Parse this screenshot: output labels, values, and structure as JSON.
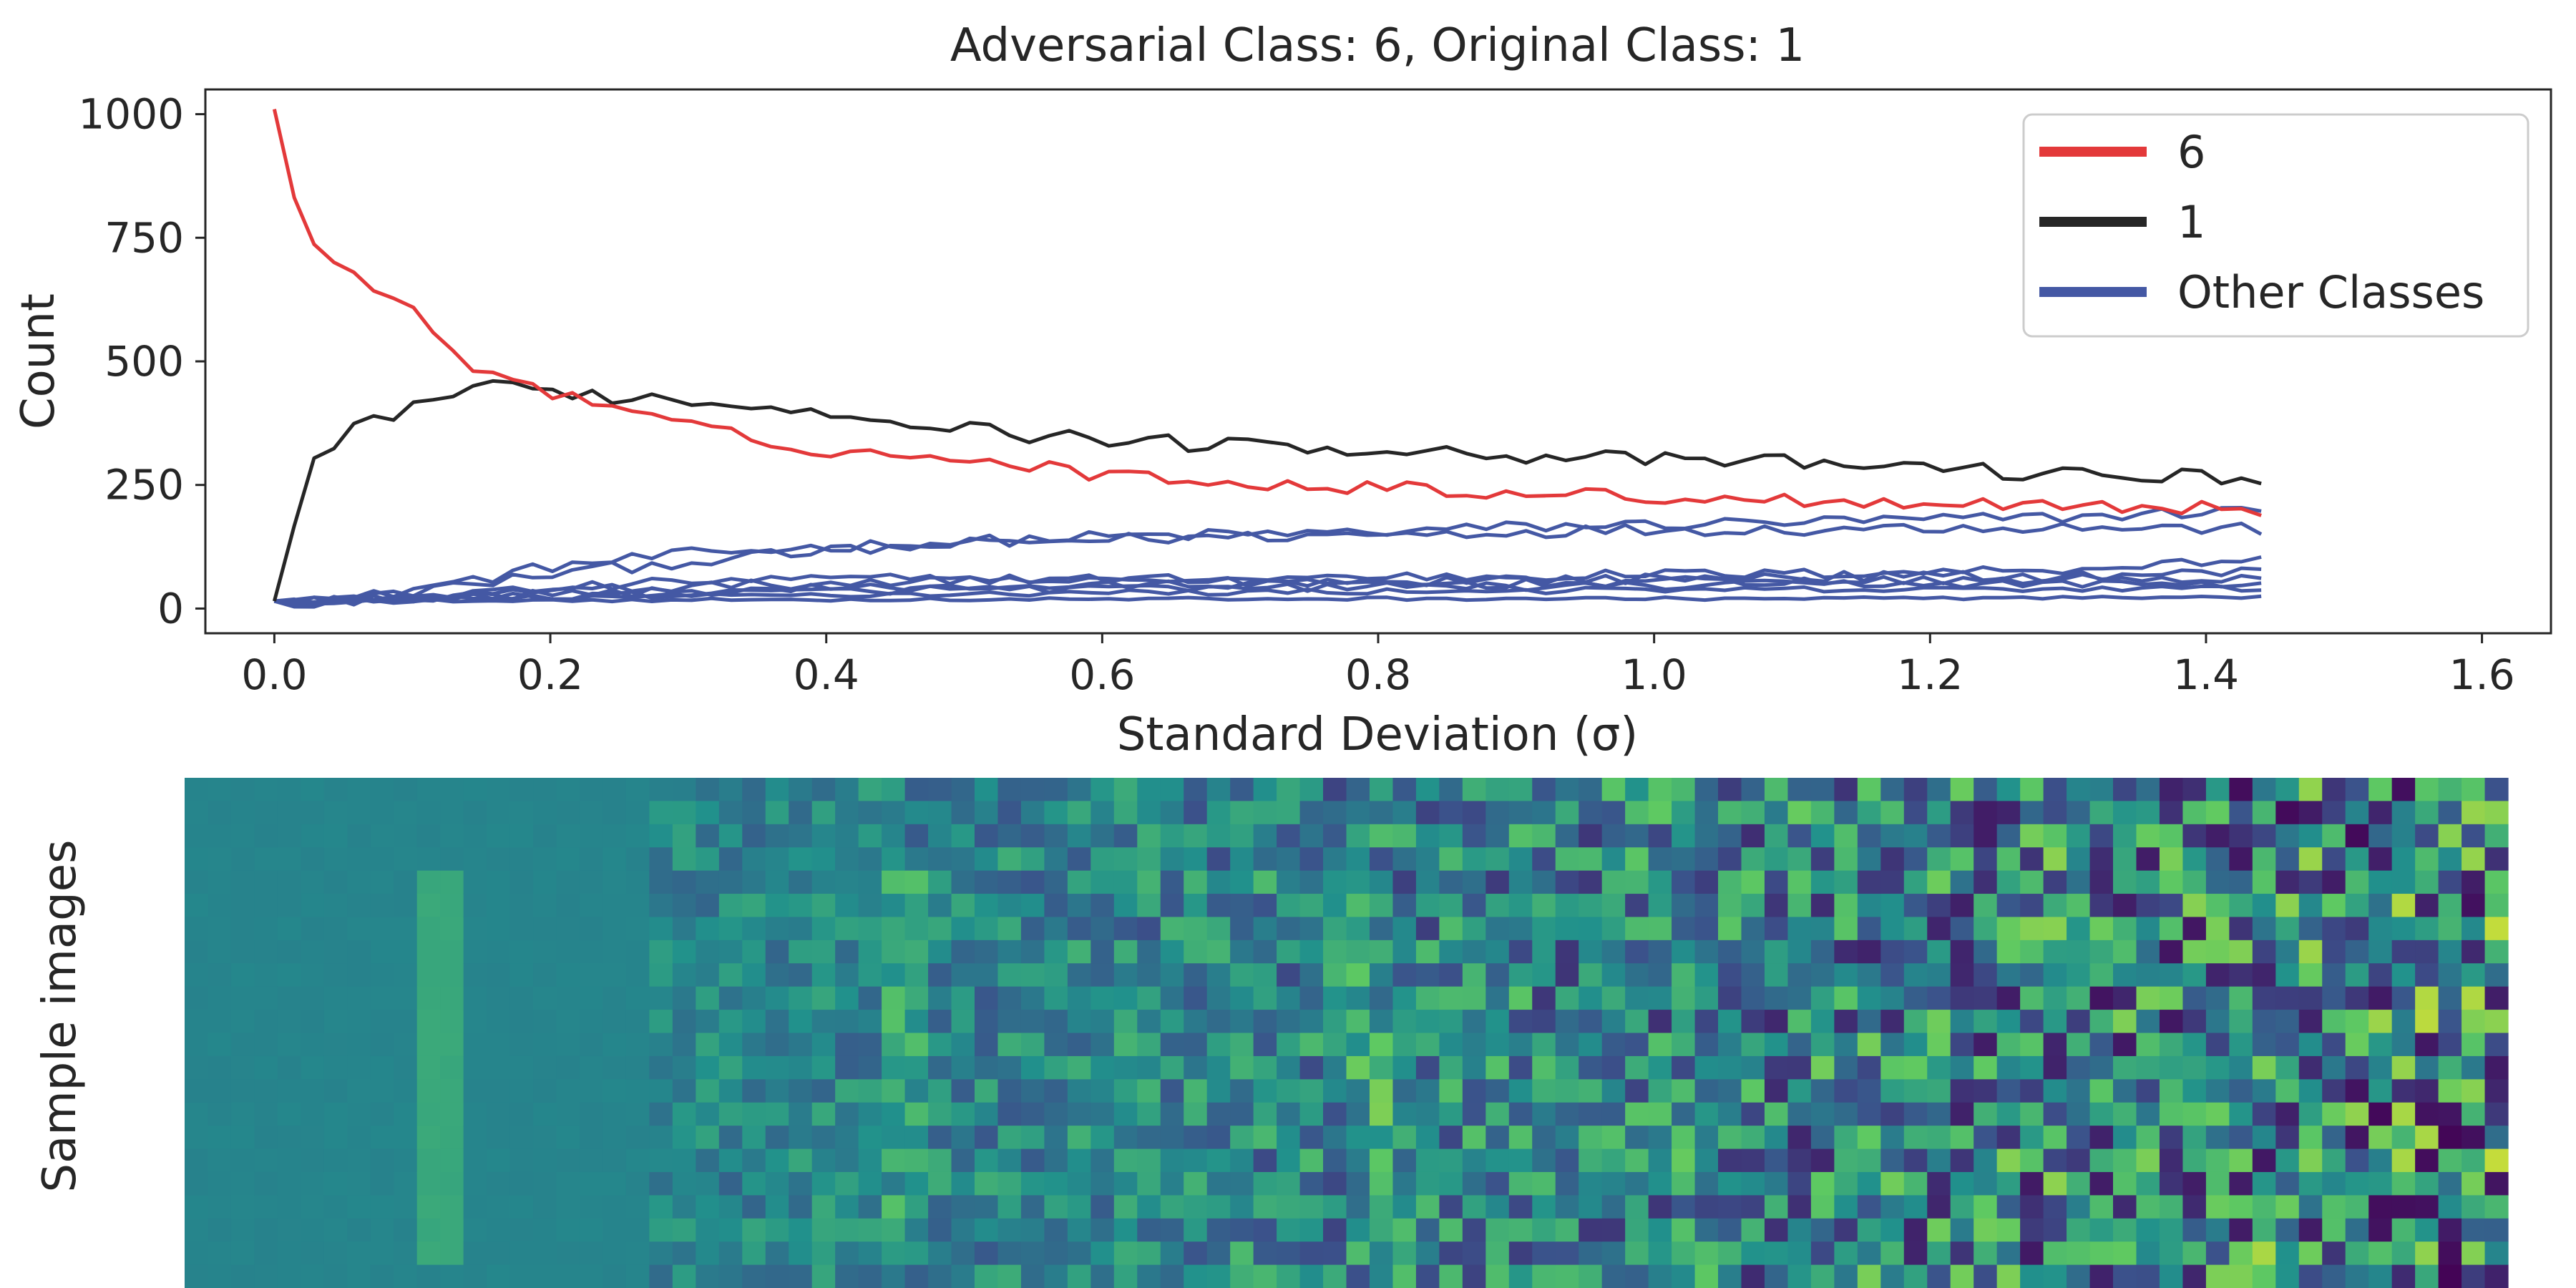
{
  "chart_data": [
    {
      "type": "line",
      "title": "Adversarial Class: 6, Original Class: 1",
      "xlabel": "Standard Deviation (σ)",
      "ylabel": "Count",
      "xlim": [
        -0.05,
        1.65
      ],
      "ylim": [
        -50,
        1050
      ],
      "xticks": [
        0.0,
        0.2,
        0.4,
        0.6,
        0.8,
        1.0,
        1.2,
        1.4,
        1.6
      ],
      "xtick_labels": [
        "0.0",
        "0.2",
        "0.4",
        "0.6",
        "0.8",
        "1.0",
        "1.2",
        "1.4",
        "1.6"
      ],
      "yticks": [
        0,
        250,
        500,
        750,
        1000
      ],
      "ytick_labels": [
        "0",
        "250",
        "500",
        "750",
        "1000"
      ],
      "grid": false,
      "legend_position": "top-right",
      "legend": [
        {
          "label": "6",
          "color": "#e3393a"
        },
        {
          "label": "1",
          "color": "#262626"
        },
        {
          "label": "Other Classes",
          "color": "#4458a4"
        }
      ],
      "x_range": [
        0.0,
        1.44
      ],
      "num_points": 101,
      "series": [
        {
          "name": "6",
          "color": "#e3393a",
          "anchors": [
            [
              0.0,
              1010
            ],
            [
              0.01,
              860
            ],
            [
              0.03,
              730
            ],
            [
              0.05,
              690
            ],
            [
              0.07,
              650
            ],
            [
              0.1,
              600
            ],
            [
              0.12,
              550
            ],
            [
              0.14,
              490
            ],
            [
              0.16,
              480
            ],
            [
              0.18,
              460
            ],
            [
              0.2,
              440
            ],
            [
              0.22,
              420
            ],
            [
              0.25,
              400
            ],
            [
              0.28,
              380
            ],
            [
              0.3,
              370
            ],
            [
              0.35,
              340
            ],
            [
              0.4,
              320
            ],
            [
              0.45,
              310
            ],
            [
              0.5,
              300
            ],
            [
              0.55,
              290
            ],
            [
              0.6,
              270
            ],
            [
              0.65,
              265
            ],
            [
              0.7,
              255
            ],
            [
              0.75,
              250
            ],
            [
              0.8,
              245
            ],
            [
              0.85,
              240
            ],
            [
              0.9,
              235
            ],
            [
              0.95,
              230
            ],
            [
              1.0,
              225
            ],
            [
              1.1,
              220
            ],
            [
              1.2,
              215
            ],
            [
              1.3,
              210
            ],
            [
              1.44,
              200
            ]
          ],
          "noise": 14
        },
        {
          "name": "1",
          "color": "#262626",
          "anchors": [
            [
              0.0,
              15
            ],
            [
              0.03,
              300
            ],
            [
              0.06,
              370
            ],
            [
              0.1,
              410
            ],
            [
              0.14,
              445
            ],
            [
              0.17,
              445
            ],
            [
              0.2,
              440
            ],
            [
              0.25,
              430
            ],
            [
              0.3,
              420
            ],
            [
              0.35,
              410
            ],
            [
              0.4,
              400
            ],
            [
              0.45,
              385
            ],
            [
              0.5,
              365
            ],
            [
              0.55,
              350
            ],
            [
              0.6,
              345
            ],
            [
              0.65,
              335
            ],
            [
              0.7,
              330
            ],
            [
              0.8,
              325
            ],
            [
              0.9,
              310
            ],
            [
              1.0,
              300
            ],
            [
              1.1,
              295
            ],
            [
              1.2,
              285
            ],
            [
              1.3,
              270
            ],
            [
              1.44,
              265
            ]
          ],
          "noise": 16
        },
        {
          "name": "Other Classes",
          "color": "#4458a4",
          "anchors": [
            [
              0.0,
              15
            ],
            [
              0.05,
              15
            ],
            [
              0.1,
              40
            ],
            [
              0.15,
              60
            ],
            [
              0.2,
              85
            ],
            [
              0.3,
              110
            ],
            [
              0.4,
              125
            ],
            [
              0.5,
              135
            ],
            [
              0.6,
              145
            ],
            [
              0.7,
              150
            ],
            [
              0.8,
              155
            ],
            [
              0.9,
              165
            ],
            [
              1.0,
              170
            ],
            [
              1.1,
              175
            ],
            [
              1.2,
              180
            ],
            [
              1.3,
              185
            ],
            [
              1.44,
              200
            ]
          ],
          "noise": 12
        },
        {
          "name": "Other Classes",
          "color": "#4458a4",
          "anchors": [
            [
              0.0,
              15
            ],
            [
              0.05,
              15
            ],
            [
              0.1,
              35
            ],
            [
              0.15,
              50
            ],
            [
              0.2,
              70
            ],
            [
              0.3,
              95
            ],
            [
              0.4,
              115
            ],
            [
              0.5,
              130
            ],
            [
              0.6,
              140
            ],
            [
              0.7,
              145
            ],
            [
              0.8,
              150
            ],
            [
              0.9,
              155
            ],
            [
              1.0,
              160
            ],
            [
              1.1,
              160
            ],
            [
              1.2,
              165
            ],
            [
              1.3,
              165
            ],
            [
              1.44,
              160
            ]
          ],
          "noise": 12
        },
        {
          "name": "Other Classes",
          "color": "#4458a4",
          "anchors": [
            [
              0.0,
              15
            ],
            [
              0.05,
              15
            ],
            [
              0.1,
              25
            ],
            [
              0.2,
              40
            ],
            [
              0.3,
              55
            ],
            [
              0.4,
              60
            ],
            [
              0.5,
              60
            ],
            [
              0.6,
              60
            ],
            [
              0.7,
              60
            ],
            [
              0.8,
              65
            ],
            [
              0.9,
              65
            ],
            [
              1.0,
              70
            ],
            [
              1.1,
              70
            ],
            [
              1.2,
              75
            ],
            [
              1.3,
              80
            ],
            [
              1.44,
              100
            ]
          ],
          "noise": 10
        },
        {
          "name": "Other Classes",
          "color": "#4458a4",
          "anchors": [
            [
              0.0,
              15
            ],
            [
              0.05,
              15
            ],
            [
              0.1,
              25
            ],
            [
              0.2,
              35
            ],
            [
              0.3,
              45
            ],
            [
              0.4,
              50
            ],
            [
              0.5,
              55
            ],
            [
              0.6,
              55
            ],
            [
              0.7,
              55
            ],
            [
              0.8,
              55
            ],
            [
              0.9,
              60
            ],
            [
              1.0,
              60
            ],
            [
              1.1,
              65
            ],
            [
              1.2,
              65
            ],
            [
              1.3,
              65
            ],
            [
              1.44,
              75
            ]
          ],
          "noise": 10
        },
        {
          "name": "Other Classes",
          "color": "#4458a4",
          "anchors": [
            [
              0.0,
              15
            ],
            [
              0.05,
              15
            ],
            [
              0.1,
              20
            ],
            [
              0.2,
              30
            ],
            [
              0.3,
              35
            ],
            [
              0.4,
              40
            ],
            [
              0.5,
              45
            ],
            [
              0.6,
              45
            ],
            [
              0.7,
              50
            ],
            [
              0.8,
              50
            ],
            [
              0.9,
              50
            ],
            [
              1.0,
              55
            ],
            [
              1.1,
              55
            ],
            [
              1.2,
              55
            ],
            [
              1.3,
              60
            ],
            [
              1.44,
              60
            ]
          ],
          "noise": 9
        },
        {
          "name": "Other Classes",
          "color": "#4458a4",
          "anchors": [
            [
              0.0,
              15
            ],
            [
              0.05,
              15
            ],
            [
              0.1,
              20
            ],
            [
              0.2,
              25
            ],
            [
              0.3,
              30
            ],
            [
              0.4,
              35
            ],
            [
              0.5,
              40
            ],
            [
              0.6,
              40
            ],
            [
              0.7,
              40
            ],
            [
              0.8,
              45
            ],
            [
              0.9,
              45
            ],
            [
              1.0,
              45
            ],
            [
              1.1,
              50
            ],
            [
              1.2,
              50
            ],
            [
              1.3,
              50
            ],
            [
              1.44,
              50
            ]
          ],
          "noise": 8
        },
        {
          "name": "Other Classes",
          "color": "#4458a4",
          "anchors": [
            [
              0.0,
              15
            ],
            [
              0.05,
              15
            ],
            [
              0.1,
              18
            ],
            [
              0.2,
              22
            ],
            [
              0.3,
              25
            ],
            [
              0.4,
              28
            ],
            [
              0.5,
              30
            ],
            [
              0.6,
              32
            ],
            [
              0.7,
              33
            ],
            [
              0.8,
              35
            ],
            [
              0.9,
              36
            ],
            [
              1.0,
              37
            ],
            [
              1.1,
              38
            ],
            [
              1.2,
              38
            ],
            [
              1.3,
              40
            ],
            [
              1.44,
              40
            ]
          ],
          "noise": 6
        },
        {
          "name": "Other Classes",
          "color": "#4458a4",
          "anchors": [
            [
              0.0,
              15
            ],
            [
              0.1,
              15
            ],
            [
              0.2,
              17
            ],
            [
              0.4,
              18
            ],
            [
              0.6,
              19
            ],
            [
              0.8,
              20
            ],
            [
              1.0,
              20
            ],
            [
              1.2,
              21
            ],
            [
              1.44,
              22
            ]
          ],
          "noise": 3
        }
      ]
    },
    {
      "type": "heatmap",
      "ylabel": "Sample images",
      "description_free": true,
      "grid_columns": 100,
      "grid_rows": 22,
      "colormap": [
        "#440154",
        "#3b528b",
        "#21918c",
        "#5ec962",
        "#fde725"
      ],
      "base_value": 0.45,
      "clean_columns": 20,
      "digit_stroke_columns": [
        10,
        11
      ],
      "digit_stroke_rows": [
        4,
        20
      ]
    }
  ]
}
